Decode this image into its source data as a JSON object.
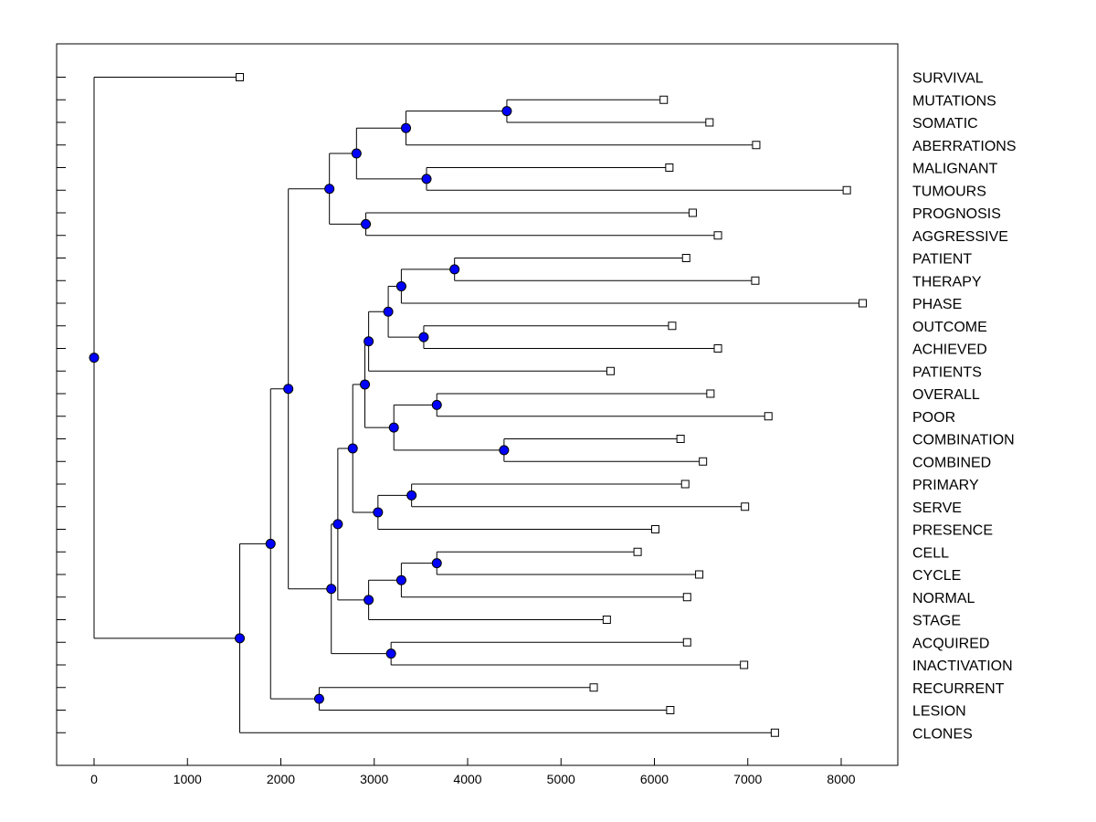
{
  "chart_data": {
    "type": "dendrogram",
    "title": "",
    "xlabel": "",
    "ylabel": "",
    "xlim": [
      -400,
      8650
    ],
    "xticks": [
      0,
      1000,
      2000,
      3000,
      4000,
      5000,
      6000,
      7000,
      8000
    ],
    "tick_labels": [
      "0",
      "1000",
      "2000",
      "3000",
      "4000",
      "5000",
      "6000",
      "7000",
      "8000"
    ],
    "node_color": "#0000ff",
    "leaves": [
      {
        "label": "SURVIVAL",
        "value": 1560
      },
      {
        "label": "MUTATIONS",
        "value": 6100
      },
      {
        "label": "SOMATIC",
        "value": 6590
      },
      {
        "label": "ABERRATIONS",
        "value": 7090
      },
      {
        "label": "MALIGNANT",
        "value": 6160
      },
      {
        "label": "TUMOURS",
        "value": 8060
      },
      {
        "label": "PROGNOSIS",
        "value": 6410
      },
      {
        "label": "AGGRESSIVE",
        "value": 6680
      },
      {
        "label": "PATIENT",
        "value": 6340
      },
      {
        "label": "THERAPY",
        "value": 7080
      },
      {
        "label": "PHASE",
        "value": 8230
      },
      {
        "label": "OUTCOME",
        "value": 6190
      },
      {
        "label": "ACHIEVED",
        "value": 6680
      },
      {
        "label": "PATIENTS",
        "value": 5530
      },
      {
        "label": "OVERALL",
        "value": 6600
      },
      {
        "label": "POOR",
        "value": 7220
      },
      {
        "label": "COMBINATION",
        "value": 6280
      },
      {
        "label": "COMBINED",
        "value": 6520
      },
      {
        "label": "PRIMARY",
        "value": 6330
      },
      {
        "label": "SERVE",
        "value": 6970
      },
      {
        "label": "PRESENCE",
        "value": 6010
      },
      {
        "label": "CELL",
        "value": 5820
      },
      {
        "label": "CYCLE",
        "value": 6480
      },
      {
        "label": "NORMAL",
        "value": 6350
      },
      {
        "label": "STAGE",
        "value": 5490
      },
      {
        "label": "ACQUIRED",
        "value": 6350
      },
      {
        "label": "INACTIVATION",
        "value": 6960
      },
      {
        "label": "RECURRENT",
        "value": 5350
      },
      {
        "label": "LESION",
        "value": 6170
      },
      {
        "label": "CLONES",
        "value": 7290
      }
    ],
    "merges": [
      {
        "id": "n1",
        "value": 4420,
        "children": [
          "MUTATIONS",
          "SOMATIC"
        ]
      },
      {
        "id": "n2",
        "value": 3340,
        "children": [
          "n1",
          "ABERRATIONS"
        ]
      },
      {
        "id": "n3",
        "value": 3560,
        "children": [
          "MALIGNANT",
          "TUMOURS"
        ]
      },
      {
        "id": "n4",
        "value": 2810,
        "children": [
          "n2",
          "n3"
        ]
      },
      {
        "id": "n5",
        "value": 2910,
        "children": [
          "PROGNOSIS",
          "AGGRESSIVE"
        ]
      },
      {
        "id": "n6",
        "value": 2520,
        "children": [
          "n4",
          "n5"
        ]
      },
      {
        "id": "n7",
        "value": 3860,
        "children": [
          "PATIENT",
          "THERAPY"
        ]
      },
      {
        "id": "n8",
        "value": 3290,
        "children": [
          "n7",
          "PHASE"
        ]
      },
      {
        "id": "n9",
        "value": 3530,
        "children": [
          "OUTCOME",
          "ACHIEVED"
        ]
      },
      {
        "id": "n10",
        "value": 3150,
        "children": [
          "n8",
          "n9"
        ]
      },
      {
        "id": "n11",
        "value": 2940,
        "children": [
          "n10",
          "PATIENTS"
        ]
      },
      {
        "id": "n12",
        "value": 3670,
        "children": [
          "OVERALL",
          "POOR"
        ]
      },
      {
        "id": "n13",
        "value": 4390,
        "children": [
          "COMBINATION",
          "COMBINED"
        ]
      },
      {
        "id": "n14",
        "value": 3210,
        "children": [
          "n12",
          "n13"
        ]
      },
      {
        "id": "n15",
        "value": 2900,
        "children": [
          "n11",
          "n14"
        ]
      },
      {
        "id": "n16",
        "value": 3400,
        "children": [
          "PRIMARY",
          "SERVE"
        ]
      },
      {
        "id": "n17",
        "value": 3040,
        "children": [
          "n16",
          "PRESENCE"
        ]
      },
      {
        "id": "n18",
        "value": 2770,
        "children": [
          "n15",
          "n17"
        ]
      },
      {
        "id": "n19",
        "value": 3670,
        "children": [
          "CELL",
          "CYCLE"
        ]
      },
      {
        "id": "n20",
        "value": 3290,
        "children": [
          "n19",
          "NORMAL"
        ]
      },
      {
        "id": "n21",
        "value": 2940,
        "children": [
          "n20",
          "STAGE"
        ]
      },
      {
        "id": "n22",
        "value": 2610,
        "children": [
          "n18",
          "n21"
        ]
      },
      {
        "id": "n23",
        "value": 3180,
        "children": [
          "ACQUIRED",
          "INACTIVATION"
        ]
      },
      {
        "id": "n24",
        "value": 2540,
        "children": [
          "n22",
          "n23"
        ]
      },
      {
        "id": "n25",
        "value": 2080,
        "children": [
          "n6",
          "n24"
        ]
      },
      {
        "id": "n26",
        "value": 2410,
        "children": [
          "RECURRENT",
          "LESION"
        ]
      },
      {
        "id": "n27",
        "value": 1890,
        "children": [
          "n25",
          "n26"
        ]
      },
      {
        "id": "n28",
        "value": 1560,
        "children": [
          "n27",
          "CLONES"
        ]
      },
      {
        "id": "n29",
        "value": 0,
        "children": [
          "SURVIVAL",
          "n28"
        ]
      }
    ]
  }
}
